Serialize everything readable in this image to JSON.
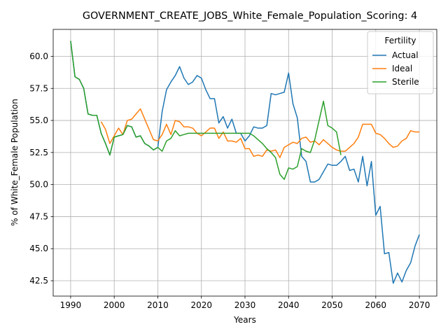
{
  "chart_data": {
    "type": "line",
    "title": "GOVERNMENT_CREATE_JOBS_White_Female_Population_Scoring: 4",
    "xlabel": "Years",
    "ylabel": "% of White_Female Population",
    "xlim": [
      1986,
      2074
    ],
    "ylim": [
      41.3,
      62.1
    ],
    "xticks": [
      1990,
      2000,
      2010,
      2020,
      2030,
      2040,
      2050,
      2060,
      2070
    ],
    "yticks": [
      42.5,
      45.0,
      47.5,
      50.0,
      52.5,
      55.0,
      57.5,
      60.0
    ],
    "grid": true,
    "legend": {
      "title": "Fertility",
      "placement": "top-right"
    },
    "series": [
      {
        "name": "Actual",
        "color": "#1f77b4",
        "x": [
          1990,
          1991,
          1992,
          1993,
          1994,
          1995,
          1996,
          1997,
          1998,
          1999,
          2000,
          2001,
          2002,
          2003,
          2004,
          2005,
          2006,
          2007,
          2008,
          2009,
          2010,
          2011,
          2012,
          2013,
          2014,
          2015,
          2016,
          2017,
          2018,
          2019,
          2020,
          2021,
          2022,
          2023,
          2024,
          2025,
          2026,
          2027,
          2028,
          2029,
          2030,
          2031,
          2032,
          2033,
          2034,
          2035,
          2036,
          2037,
          2038,
          2039,
          2040,
          2041,
          2042,
          2043,
          2044,
          2045,
          2046,
          2047,
          2048,
          2049,
          2050,
          2051,
          2052,
          2053,
          2054,
          2055,
          2056,
          2057,
          2058,
          2059,
          2060,
          2061,
          2062,
          2063,
          2064,
          2065,
          2066,
          2067,
          2068,
          2069,
          2070
        ],
        "values": [
          61.2,
          58.4,
          58.2,
          57.5,
          55.5,
          55.4,
          55.4,
          54.0,
          53.2,
          52.3,
          53.7,
          53.8,
          53.9,
          54.6,
          54.5,
          53.7,
          53.8,
          53.2,
          53.0,
          52.7,
          52.9,
          55.7,
          57.4,
          58.0,
          58.5,
          59.2,
          58.3,
          57.8,
          58.0,
          58.5,
          58.3,
          57.4,
          56.7,
          56.7,
          54.8,
          55.3,
          54.4,
          55.1,
          54.0,
          54.0,
          53.4,
          53.8,
          54.5,
          54.4,
          54.4,
          54.6,
          57.1,
          57.0,
          57.1,
          57.2,
          58.7,
          56.3,
          55.2,
          52.2,
          51.8,
          50.2,
          50.2,
          50.4,
          51.0,
          51.6,
          51.5,
          51.5,
          51.8,
          52.2,
          51.1,
          51.2,
          50.2,
          52.2,
          49.9,
          51.8,
          47.6,
          48.3,
          44.6,
          44.7,
          42.3,
          43.1,
          42.4,
          43.3,
          43.9,
          45.2,
          46.1
        ]
      },
      {
        "name": "Ideal",
        "color": "#ff7f0e",
        "x": [
          1997,
          1998,
          1999,
          2000,
          2001,
          2002,
          2003,
          2004,
          2005,
          2006,
          2007,
          2008,
          2009,
          2010,
          2011,
          2012,
          2013,
          2014,
          2015,
          2016,
          2017,
          2018,
          2019,
          2020,
          2021,
          2022,
          2023,
          2024,
          2025,
          2026,
          2027,
          2028,
          2029,
          2030,
          2031,
          2032,
          2033,
          2034,
          2035,
          2036,
          2037,
          2038,
          2039,
          2040,
          2041,
          2042,
          2043,
          2044,
          2045,
          2046,
          2047,
          2048,
          2049,
          2050,
          2051,
          2052,
          2053,
          2054,
          2055,
          2056,
          2057,
          2058,
          2059,
          2060,
          2061,
          2062,
          2063,
          2064,
          2065,
          2066,
          2067,
          2068,
          2069,
          2070
        ],
        "values": [
          54.9,
          54.3,
          53.2,
          53.8,
          54.4,
          53.9,
          55.0,
          55.1,
          55.5,
          55.9,
          55.1,
          54.3,
          53.5,
          53.4,
          53.9,
          54.7,
          53.9,
          55.0,
          54.9,
          54.5,
          54.5,
          54.4,
          54.0,
          53.8,
          54.1,
          54.4,
          54.4,
          53.6,
          54.1,
          53.4,
          53.4,
          53.3,
          53.6,
          52.8,
          52.8,
          52.2,
          52.3,
          52.2,
          52.7,
          52.6,
          52.7,
          52.1,
          52.9,
          53.1,
          53.3,
          53.2,
          53.6,
          53.7,
          53.3,
          53.4,
          53.1,
          53.5,
          53.2,
          52.9,
          52.7,
          52.6,
          52.6,
          52.9,
          53.2,
          53.7,
          54.7,
          54.7,
          54.7,
          54.0,
          53.9,
          53.6,
          53.2,
          52.9,
          53.0,
          53.4,
          53.6,
          54.2,
          54.1,
          54.1
        ]
      },
      {
        "name": "Sterile",
        "color": "#2ca02c",
        "x": [
          1990,
          1991,
          1992,
          1993,
          1994,
          1995,
          1996,
          1997,
          1998,
          1999,
          2000,
          2001,
          2002,
          2003,
          2004,
          2005,
          2006,
          2007,
          2008,
          2009,
          2010,
          2011,
          2012,
          2013,
          2014,
          2015,
          2016,
          2017,
          2018,
          2019,
          2020,
          2021,
          2022,
          2023,
          2024,
          2025,
          2026,
          2027,
          2028,
          2029,
          2030,
          2031,
          2032,
          2033,
          2034,
          2035,
          2036,
          2037,
          2038,
          2039,
          2040,
          2041,
          2042,
          2043,
          2044,
          2045,
          2046,
          2047,
          2048,
          2049,
          2050,
          2051,
          2052
        ],
        "values": [
          61.2,
          58.4,
          58.2,
          57.5,
          55.5,
          55.4,
          55.4,
          54.0,
          53.2,
          52.3,
          53.7,
          53.8,
          53.9,
          54.6,
          54.5,
          53.7,
          53.8,
          53.2,
          53.0,
          52.7,
          52.9,
          52.6,
          53.4,
          53.6,
          54.2,
          53.8,
          53.9,
          54.0,
          54.0,
          54.0,
          54.0,
          54.0,
          54.0,
          54.0,
          54.0,
          54.0,
          54.0,
          54.0,
          54.0,
          54.0,
          54.0,
          54.0,
          53.8,
          53.5,
          53.2,
          52.8,
          52.5,
          52.1,
          50.8,
          50.4,
          51.3,
          51.2,
          51.4,
          52.8,
          52.6,
          52.5,
          53.5,
          55.0,
          56.5,
          54.6,
          54.4,
          54.1,
          52.3
        ]
      }
    ]
  }
}
